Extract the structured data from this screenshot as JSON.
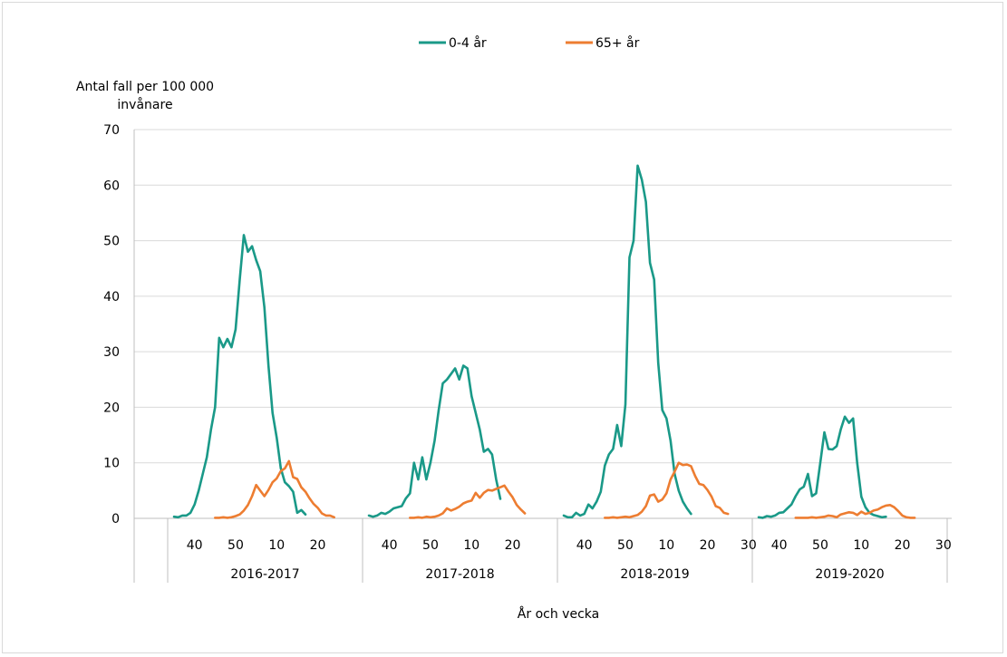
{
  "chart_data": {
    "type": "line",
    "title": "",
    "ylabel_lines": [
      "Antal fall per 100 000",
      "invånare"
    ],
    "xlabel": "År och vecka",
    "ylim": [
      0,
      70
    ],
    "yticks": [
      0,
      10,
      20,
      30,
      40,
      50,
      60,
      70
    ],
    "grid": true,
    "legend_position": "top-center",
    "series_meta": [
      {
        "name": "0-4 år",
        "color": "#1a9988"
      },
      {
        "name": "65+ år",
        "color": "#ed7d31"
      }
    ],
    "seasons": [
      {
        "label": "2016-2017",
        "week_ticks": [
          {
            "label": "40",
            "index": 5
          },
          {
            "label": "50",
            "index": 15
          },
          {
            "label": "10",
            "index": 25
          },
          {
            "label": "20",
            "index": 35
          }
        ],
        "series": [
          {
            "name": "0-4 år",
            "start": 0,
            "values": [
              0.3,
              0.2,
              0.5,
              0.5,
              1.0,
              2.5,
              5.0,
              8.0,
              11.0,
              16.0,
              20.0,
              32.5,
              30.8,
              32.3,
              30.8,
              34.0,
              43.0,
              51.0,
              48.0,
              49.0,
              46.5,
              44.5,
              38.0,
              27.5,
              19.0,
              14.5,
              9.0,
              6.5,
              5.8,
              4.8,
              1.0,
              1.5,
              0.7
            ]
          },
          {
            "name": "65+ år",
            "start": 10,
            "values": [
              0.1,
              0.1,
              0.2,
              0.1,
              0.2,
              0.4,
              0.7,
              1.4,
              2.4,
              4.0,
              6.0,
              5.0,
              4.0,
              5.1,
              6.5,
              7.2,
              8.5,
              9.0,
              10.3,
              7.4,
              7.1,
              5.6,
              4.8,
              3.6,
              2.6,
              1.9,
              0.9,
              0.5,
              0.5,
              0.2
            ]
          }
        ]
      },
      {
        "label": "2017-2018",
        "week_ticks": [
          {
            "label": "40",
            "index": 5
          },
          {
            "label": "50",
            "index": 15
          },
          {
            "label": "10",
            "index": 25
          },
          {
            "label": "20",
            "index": 35
          }
        ],
        "series": [
          {
            "name": "0-4 år",
            "start": 0,
            "values": [
              0.5,
              0.3,
              0.5,
              1.0,
              0.8,
              1.2,
              1.8,
              2.0,
              2.2,
              3.6,
              4.5,
              10.0,
              7.0,
              11.0,
              7.0,
              10.0,
              14.0,
              19.5,
              24.3,
              25.0,
              26.0,
              27.0,
              25.0,
              27.5,
              27.0,
              22.0,
              19.0,
              16.0,
              12.0,
              12.5,
              11.5,
              7.0,
              3.5
            ]
          },
          {
            "name": "65+ år",
            "start": 10,
            "values": [
              0.1,
              0.1,
              0.2,
              0.1,
              0.3,
              0.2,
              0.3,
              0.5,
              0.9,
              1.8,
              1.4,
              1.7,
              2.1,
              2.7,
              3.0,
              3.2,
              4.6,
              3.7,
              4.6,
              5.1,
              5.0,
              5.3,
              5.6,
              5.9,
              4.8,
              3.8,
              2.4,
              1.6,
              0.9
            ]
          }
        ]
      },
      {
        "label": "2018-2019",
        "week_ticks": [
          {
            "label": "40",
            "index": 5
          },
          {
            "label": "50",
            "index": 15
          },
          {
            "label": "10",
            "index": 25
          },
          {
            "label": "20",
            "index": 35
          },
          {
            "label": "30",
            "index": 45
          }
        ],
        "series": [
          {
            "name": "0-4 år",
            "start": 0,
            "values": [
              0.5,
              0.2,
              0.2,
              1.0,
              0.5,
              0.8,
              2.5,
              1.8,
              3.0,
              4.8,
              9.5,
              11.5,
              12.5,
              16.8,
              13.0,
              20.5,
              47.0,
              50.0,
              63.5,
              61.0,
              57.0,
              46.0,
              43.0,
              28.0,
              19.5,
              18.0,
              14.0,
              8.0,
              5.0,
              3.0,
              1.8,
              0.8
            ]
          },
          {
            "name": "65+ år",
            "start": 10,
            "values": [
              0.1,
              0.1,
              0.2,
              0.1,
              0.2,
              0.3,
              0.2,
              0.4,
              0.6,
              1.2,
              2.2,
              4.1,
              4.3,
              3.0,
              3.4,
              4.5,
              7.0,
              8.4,
              10.0,
              9.6,
              9.7,
              9.4,
              7.6,
              6.2,
              6.0,
              5.1,
              3.9,
              2.2,
              1.9,
              1.0,
              0.8
            ]
          }
        ]
      },
      {
        "label": "2019-2020",
        "week_ticks": [
          {
            "label": "40",
            "index": 5
          },
          {
            "label": "50",
            "index": 15
          },
          {
            "label": "10",
            "index": 25
          },
          {
            "label": "20",
            "index": 35
          },
          {
            "label": "30",
            "index": 45
          }
        ],
        "series": [
          {
            "name": "0-4 år",
            "start": 0,
            "values": [
              0.2,
              0.1,
              0.4,
              0.3,
              0.5,
              1.0,
              1.1,
              1.8,
              2.5,
              4.0,
              5.2,
              5.7,
              8.0,
              4.0,
              4.5,
              10.0,
              15.5,
              12.5,
              12.4,
              13.0,
              16.0,
              18.3,
              17.2,
              18.0,
              10.0,
              3.9,
              2.0,
              1.0,
              0.6,
              0.4,
              0.2,
              0.3
            ]
          },
          {
            "name": "65+ år",
            "start": 9,
            "values": [
              0.1,
              0.1,
              0.1,
              0.1,
              0.2,
              0.1,
              0.2,
              0.3,
              0.5,
              0.4,
              0.2,
              0.7,
              0.9,
              1.1,
              1.0,
              0.6,
              1.2,
              0.8,
              1.0,
              1.4,
              1.6,
              2.0,
              2.3,
              2.4,
              2.0,
              1.3,
              0.5,
              0.2,
              0.1,
              0.1
            ]
          }
        ]
      }
    ]
  }
}
